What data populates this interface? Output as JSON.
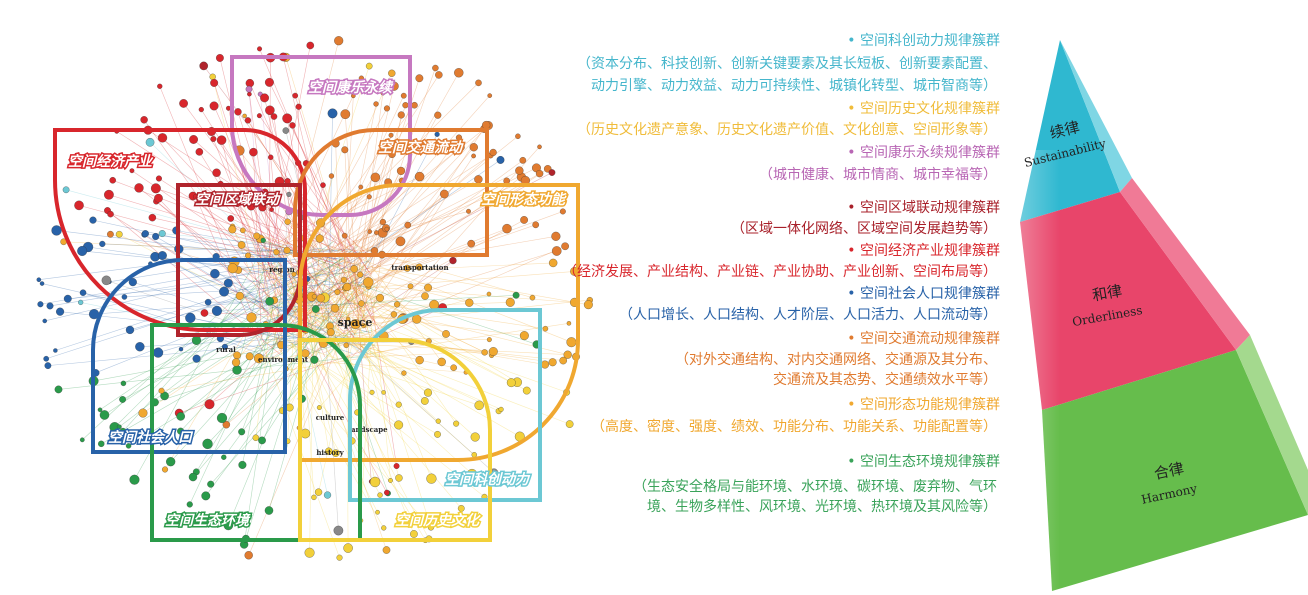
{
  "network": {
    "regions": [
      "空间康乐永续",
      "空间经济产业",
      "空间交通流动",
      "空间区域联动",
      "空间形态功能",
      "空间社会人口",
      "空间科创动力",
      "空间生态环境",
      "空间历史文化"
    ],
    "node_labels": [
      "space",
      "region",
      "rural",
      "environment",
      "culture",
      "landscape",
      "history",
      "transportation"
    ]
  },
  "clusters": [
    {
      "title": "• 空间科创动力规律簇群",
      "description": [
        "（资本分布、科技创新、创新关键要素及其长短板、创新要素配置、",
        "动力引擎、动力效益、动力可持续性、城镇化转型、城市智商等）"
      ]
    },
    {
      "title": "• 空间历史文化规律簇群",
      "description": [
        "（历史文化遗产意象、历史文化遗产价值、文化创意、空间形象等）"
      ]
    },
    {
      "title": "• 空间康乐永续规律簇群",
      "description": [
        "（城市健康、城市情商、城市幸福等）"
      ]
    },
    {
      "title": "• 空间区域联动规律簇群",
      "description": [
        "（区域一体化网络、区域空间发展趋势等）"
      ]
    },
    {
      "title": "• 空间经济产业规律簇群",
      "description": [
        "（经济发展、产业结构、产业链、产业协助、产业创新、空间布局等）"
      ]
    },
    {
      "title": "•  空间社会人口规律簇群",
      "description": [
        "（人口增长、人口结构、人才阶层、人口活力、人口流动等）"
      ]
    },
    {
      "title": "• 空间交通流动规律簇群",
      "description": [
        "（对外交通结构、对内交通网络、交通源及其分布、",
        "交通流及其态势、交通绩效水平等）"
      ]
    },
    {
      "title": "• 空间形态功能规律簇群",
      "description": [
        "（高度、密度、强度、绩效、功能分布、功能关系、功能配置等）"
      ]
    },
    {
      "title": "• 空间生态环境规律簇群",
      "description": [
        "（生态安全格局与能环境、水环境、碳环境、废弃物、气环",
        "境、生物多样性、风环境、光环境、热环境及其风险等）"
      ]
    }
  ],
  "pyramid": [
    {
      "name": "续律",
      "english": "Sustainability"
    },
    {
      "name": "和律",
      "english": "Orderliness"
    },
    {
      "name": "合律",
      "english": "Harmony"
    }
  ]
}
